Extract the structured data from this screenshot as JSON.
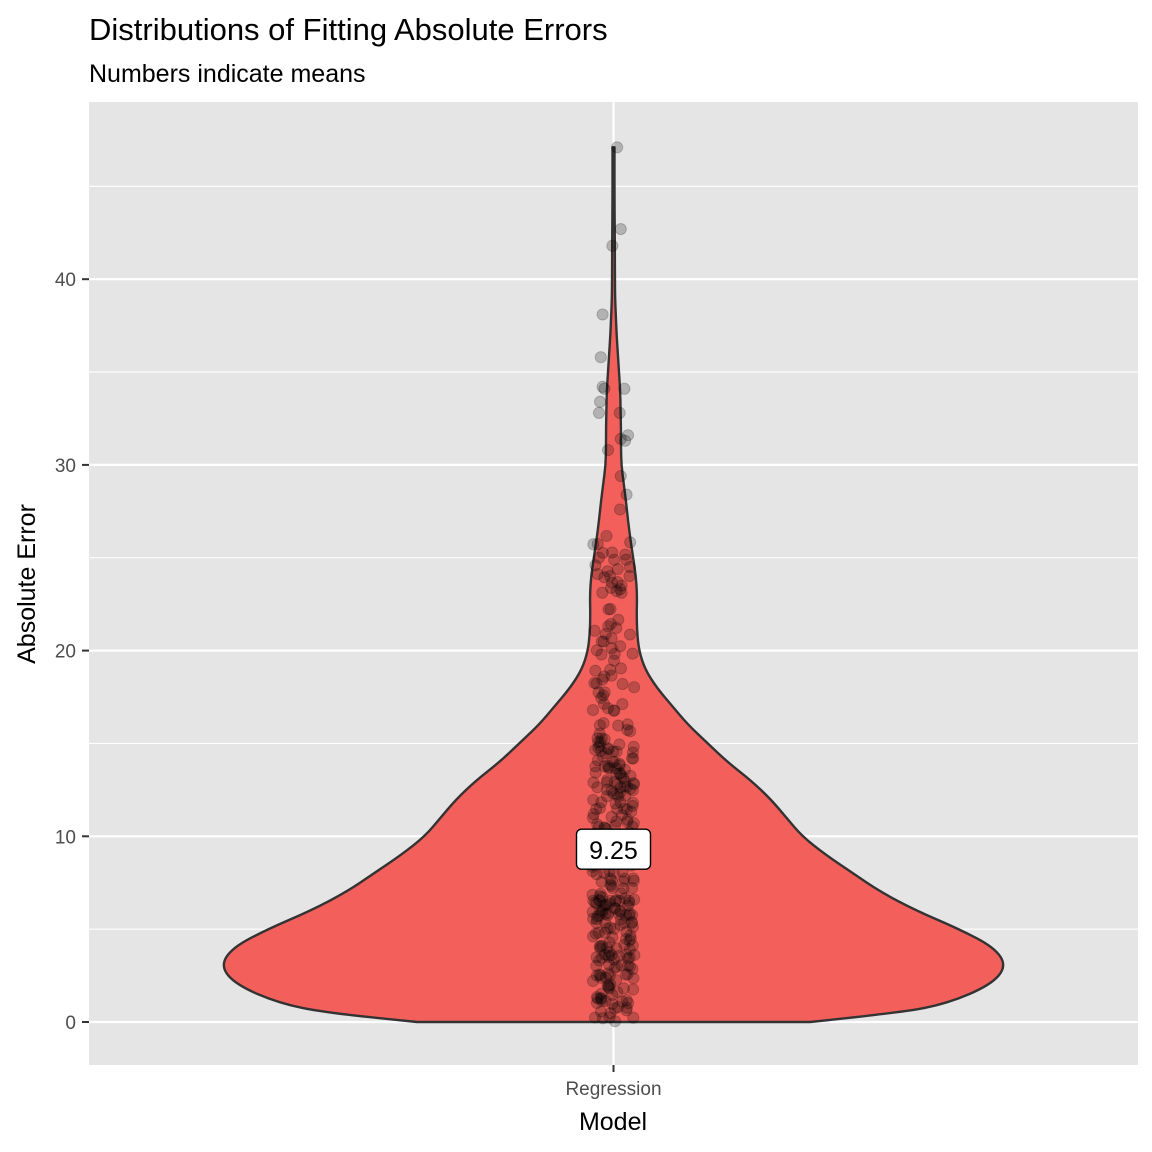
{
  "chart_data": {
    "type": "violin",
    "title": "Distributions of Fitting Absolute Errors",
    "subtitle": "Numbers indicate means",
    "xlabel": "Model",
    "ylabel": "Absolute Error",
    "categories": [
      "Regression"
    ],
    "ylim": [
      -2.3,
      49.5
    ],
    "yticks": [
      0,
      10,
      20,
      30,
      40
    ],
    "ytick_labels": [
      "0",
      "10",
      "20",
      "30",
      "40"
    ],
    "grid": true,
    "fill_color": "#F3605C",
    "outline_color": "#333333",
    "panel_color": "#E5E5E5",
    "point_color": "#000000",
    "point_alpha": 0.22,
    "violin": {
      "y_min": 0,
      "y_max": 47.1,
      "density_profile": [
        [
          0,
          0.5
        ],
        [
          0.5,
          0.73
        ],
        [
          1,
          0.85
        ],
        [
          2,
          0.96
        ],
        [
          3,
          1.0
        ],
        [
          4,
          0.97
        ],
        [
          5,
          0.88
        ],
        [
          6,
          0.77
        ],
        [
          7,
          0.68
        ],
        [
          8,
          0.61
        ],
        [
          9,
          0.54
        ],
        [
          10,
          0.48
        ],
        [
          11,
          0.44
        ],
        [
          12,
          0.4
        ],
        [
          13,
          0.35
        ],
        [
          14,
          0.29
        ],
        [
          15,
          0.24
        ],
        [
          16,
          0.19
        ],
        [
          17,
          0.15
        ],
        [
          18,
          0.11
        ],
        [
          19,
          0.08
        ],
        [
          20,
          0.065
        ],
        [
          21,
          0.06
        ],
        [
          22,
          0.059
        ],
        [
          23,
          0.06
        ],
        [
          24,
          0.057
        ],
        [
          25,
          0.05
        ],
        [
          26,
          0.043
        ],
        [
          27,
          0.037
        ],
        [
          28,
          0.032
        ],
        [
          29,
          0.026
        ],
        [
          30,
          0.02
        ],
        [
          31,
          0.019
        ],
        [
          32,
          0.019
        ],
        [
          33,
          0.018
        ],
        [
          34,
          0.017
        ],
        [
          35,
          0.014
        ],
        [
          36,
          0.011
        ],
        [
          37,
          0.008
        ],
        [
          38,
          0.006
        ],
        [
          39,
          0.004
        ],
        [
          40,
          0.0037
        ],
        [
          41,
          0.0035
        ],
        [
          42,
          0.0033
        ],
        [
          43,
          0.003
        ],
        [
          44,
          0.0027
        ],
        [
          45,
          0.0025
        ],
        [
          46,
          0.0025
        ],
        [
          47.1,
          0.0025
        ]
      ]
    },
    "mean": 9.25,
    "mean_label": "9.25",
    "outlier_points": [
      {
        "x": 0.01,
        "y": 47.1
      },
      {
        "x": 0.02,
        "y": 42.7
      },
      {
        "x": -0.003,
        "y": 41.8
      },
      {
        "x": -0.03,
        "y": 38.1
      },
      {
        "x": -0.035,
        "y": 35.8
      },
      {
        "x": -0.03,
        "y": 34.2
      },
      {
        "x": -0.025,
        "y": 34.1
      },
      {
        "x": -0.037,
        "y": 33.4
      },
      {
        "x": -0.04,
        "y": 32.8
      },
      {
        "x": 0.03,
        "y": 34.1
      },
      {
        "x": 0.017,
        "y": 32.8
      },
      {
        "x": 0.04,
        "y": 31.6
      },
      {
        "x": 0.032,
        "y": 31.3
      },
      {
        "x": 0.02,
        "y": 31.4
      },
      {
        "x": 0.036,
        "y": 28.4
      },
      {
        "x": -0.015,
        "y": 30.8
      },
      {
        "x": 0.02,
        "y": 29.4
      },
      {
        "x": 0.018,
        "y": 27.6
      },
      {
        "x": 0.045,
        "y": 24.5
      },
      {
        "x": 0.035,
        "y": 24.9
      },
      {
        "x": -0.05,
        "y": 24.6
      },
      {
        "x": -0.04,
        "y": 25.0
      },
      {
        "x": 0.025,
        "y": 18.2
      }
    ],
    "cluster": {
      "count": 360,
      "x_spread": 0.058,
      "y_range": [
        0,
        27
      ],
      "note_y_distribution": "dense near 0-15, sparser above 15"
    }
  }
}
